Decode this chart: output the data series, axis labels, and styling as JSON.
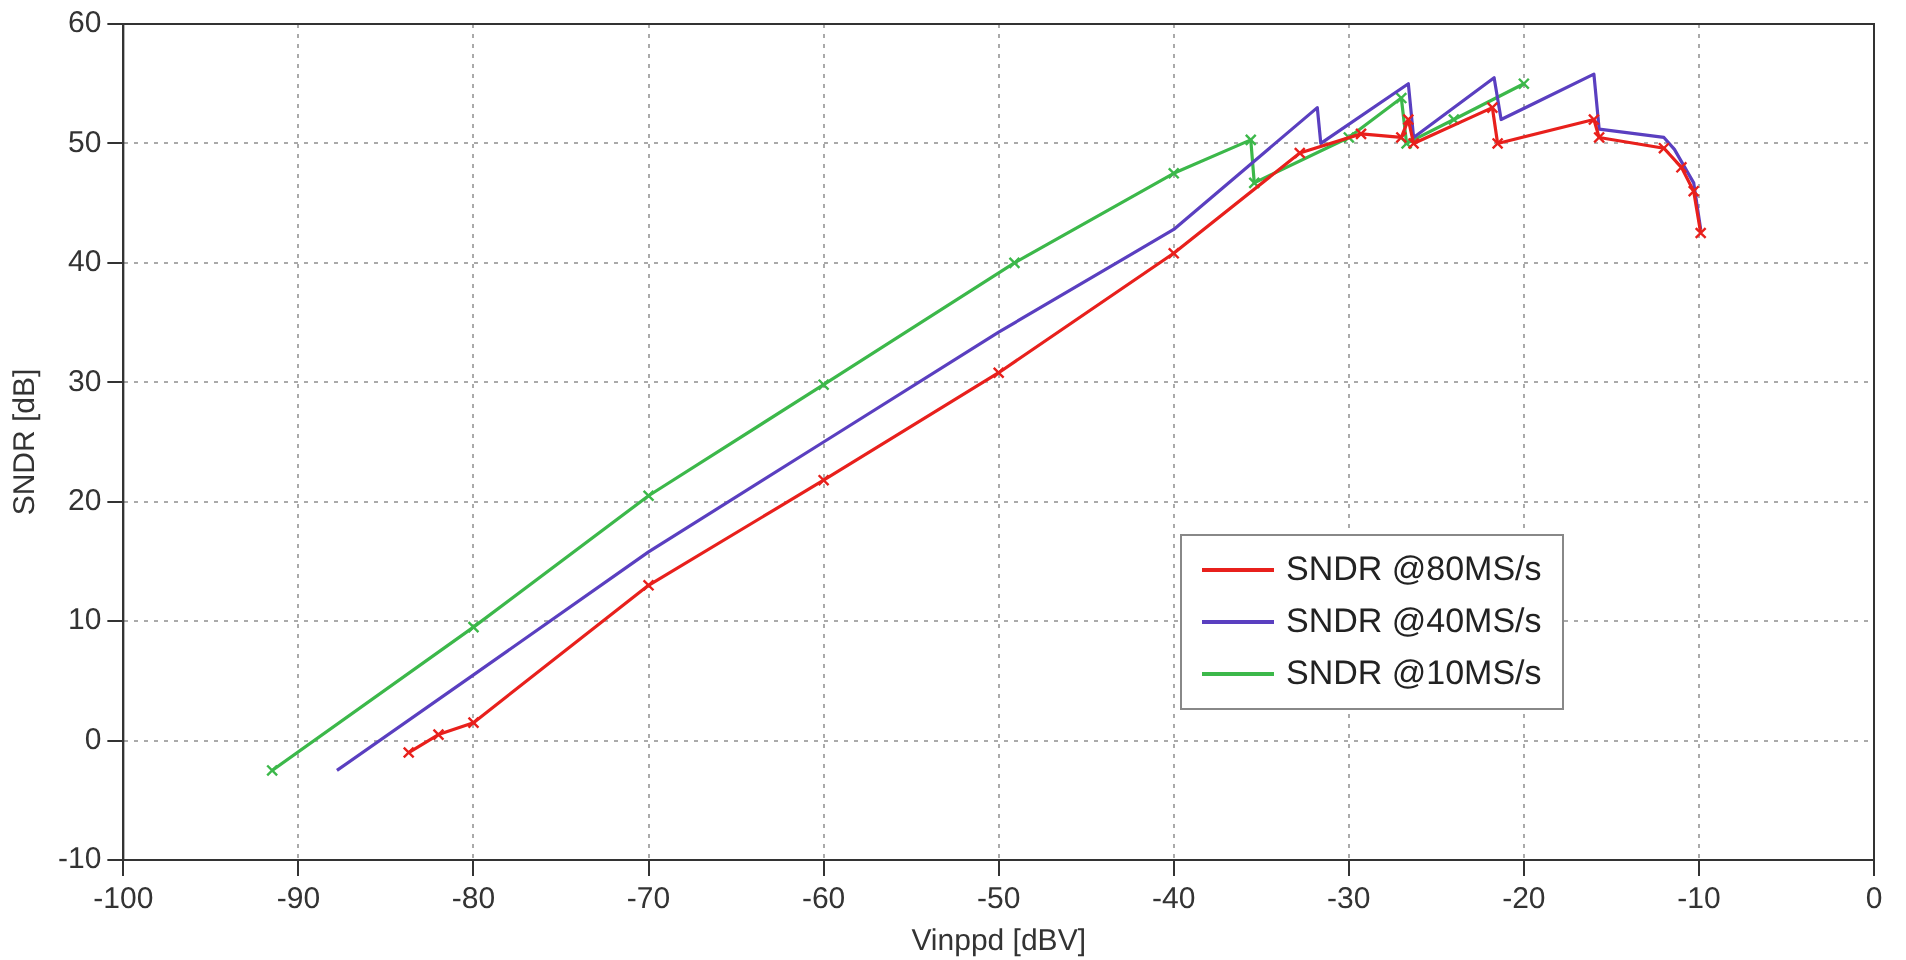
{
  "chart_data": {
    "type": "line",
    "xlabel": "Vinppd [dBV]",
    "ylabel": "SNDR [dB]",
    "xlim": [
      -100,
      0
    ],
    "xticks": [
      -100,
      -90,
      -80,
      -70,
      -60,
      -50,
      -40,
      -30,
      -20,
      -10,
      0
    ],
    "ylim": [
      -10,
      60
    ],
    "yticks": [
      -10,
      0,
      10,
      20,
      30,
      40,
      50,
      60
    ],
    "grid": true,
    "legend": "bottom right",
    "line_style": "solid",
    "series": [
      {
        "name": "SNDR @80MS/s",
        "color": "#e8201c",
        "marker": "cross",
        "x": [
          -83.7,
          -82,
          -80,
          -70,
          -60,
          -50,
          -40,
          -32.8,
          -29.3,
          -27,
          -26.6,
          -26.3,
          -21.8,
          -21.5,
          -16,
          -15.7,
          -12,
          -11,
          -10.3,
          -9.9
        ],
        "values": [
          -1,
          0.5,
          1.5,
          13,
          21.8,
          30.8,
          40.8,
          49.2,
          50.8,
          50.5,
          52,
          50,
          53,
          50,
          52,
          50.5,
          49.6,
          48,
          46,
          42.5
        ]
      },
      {
        "name": "SNDR @40MS/s",
        "color": "#5a3fc0",
        "marker": "none",
        "x": [
          -87.8,
          -80,
          -70,
          -60,
          -50,
          -40,
          -31.8,
          -31.6,
          -26.6,
          -26.3,
          -21.7,
          -21.3,
          -16,
          -15.7,
          -12,
          -11.4,
          -10.3,
          -9.9
        ],
        "values": [
          -2.5,
          5.5,
          15.8,
          25,
          34.2,
          42.8,
          53,
          50,
          55,
          50.5,
          55.5,
          52,
          55.8,
          51.2,
          50.5,
          49.5,
          46.7,
          42.8
        ]
      },
      {
        "name": "SNDR @10MS/s",
        "color": "#3cb84a",
        "marker": "cross",
        "x": [
          -91.5,
          -80,
          -70,
          -60,
          -49.1,
          -40,
          -35.6,
          -35.4,
          -30,
          -27,
          -26.7,
          -24,
          -20
        ],
        "values": [
          -2.5,
          9.5,
          20.5,
          29.8,
          40,
          47.5,
          50.3,
          46.7,
          50.5,
          53.8,
          50,
          52,
          55
        ]
      }
    ]
  }
}
